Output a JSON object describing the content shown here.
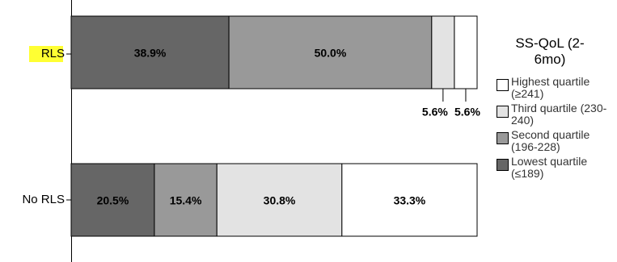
{
  "chart_data": {
    "type": "stacked-barh",
    "legend_title": "SS-QoL (2-6mo)",
    "categories": [
      "RLS",
      "No RLS"
    ],
    "highlight_category": 0,
    "series": [
      {
        "name": "Lowest quartile (≤189)",
        "color": "#666666",
        "values": [
          38.9,
          20.5
        ],
        "value_labels": [
          "38.9%",
          "20.5%"
        ]
      },
      {
        "name": "Second quartile (196-228)",
        "color": "#999999",
        "values": [
          50.0,
          15.4
        ],
        "value_labels": [
          "50.0%",
          "15.4%"
        ]
      },
      {
        "name": "Third quartile (230-240)",
        "color": "#e3e3e3",
        "values": [
          5.6,
          30.8
        ],
        "value_labels": [
          "5.6%",
          "30.8%"
        ]
      },
      {
        "name": "Highest quartile (≥241)",
        "color": "#ffffff",
        "values": [
          5.6,
          33.3
        ],
        "value_labels": [
          "5.6%",
          "33.3%"
        ]
      }
    ],
    "legend": "right"
  }
}
